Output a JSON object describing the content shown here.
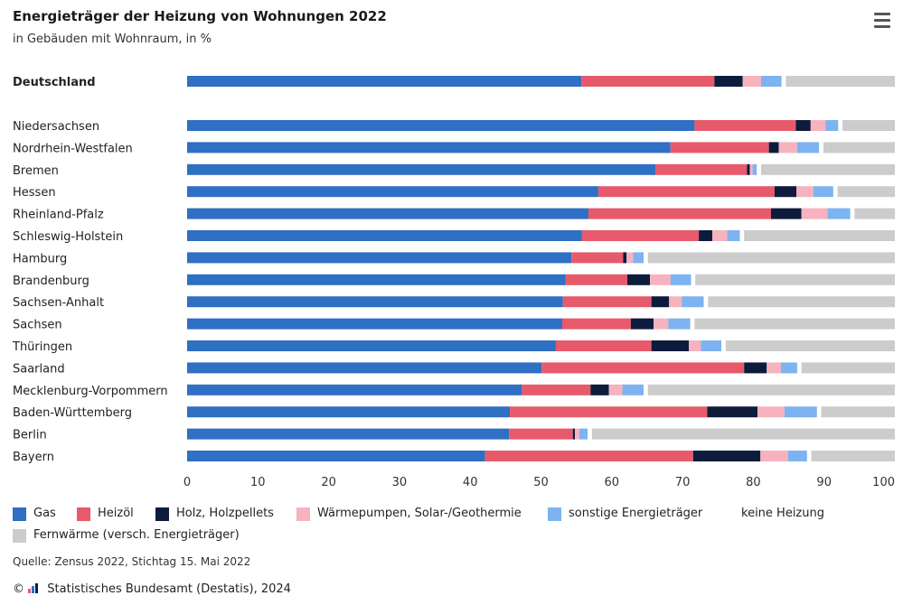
{
  "header": {
    "title": "Energieträger der Heizung von Wohnungen 2022",
    "subtitle": "in Gebäuden mit Wohnraum, in %",
    "menu_icon": "hamburger-menu-icon"
  },
  "footer": {
    "source": "Quelle: Zensus 2022, Stichtag 15. Mai 2022",
    "copyright_symbol": "©",
    "publisher": "Statistisches Bundesamt (Destatis), 2024"
  },
  "chart_data": {
    "type": "bar",
    "orientation": "horizontal",
    "stacked": true,
    "title": "Energieträger der Heizung von Wohnungen 2022",
    "subtitle": "in Gebäuden mit Wohnraum, in %",
    "xlim": [
      0,
      100
    ],
    "xticks": [
      0,
      10,
      20,
      30,
      40,
      50,
      60,
      70,
      80,
      90,
      100
    ],
    "grid": false,
    "legend_position": "bottom",
    "categories": [
      "Deutschland",
      "Niedersachsen",
      "Nordrhein-Westfalen",
      "Bremen",
      "Hessen",
      "Rheinland-Pfalz",
      "Schleswig-Holstein",
      "Hamburg",
      "Brandenburg",
      "Sachsen-Anhalt",
      "Sachsen",
      "Thüringen",
      "Saarland",
      "Mecklenburg-Vorpommern",
      "Baden-Württemberg",
      "Berlin",
      "Bayern"
    ],
    "highlight_category": "Deutschland",
    "series": [
      {
        "name": "Gas",
        "color": "#2f6fc4",
        "values": [
          55.7,
          71.7,
          68.3,
          66.2,
          58.1,
          56.7,
          55.8,
          54.3,
          53.5,
          53.1,
          53.0,
          52.1,
          50.1,
          47.3,
          45.6,
          45.5,
          42.1
        ]
      },
      {
        "name": "Heizöl",
        "color": "#e75a6b",
        "values": [
          18.8,
          14.3,
          13.9,
          12.9,
          24.9,
          25.8,
          16.5,
          7.3,
          8.7,
          12.5,
          9.7,
          13.5,
          28.6,
          9.7,
          27.9,
          9.0,
          29.4
        ]
      },
      {
        "name": "Holz, Holzpellets",
        "color": "#0d1c3d",
        "values": [
          4.0,
          2.1,
          1.4,
          0.4,
          3.1,
          4.3,
          1.9,
          0.5,
          3.2,
          2.5,
          3.2,
          5.3,
          3.2,
          2.6,
          7.1,
          0.3,
          9.5
        ]
      },
      {
        "name": "Wärmepumpen, Solar-/Geothermie",
        "color": "#f6b3bd",
        "values": [
          2.6,
          2.1,
          2.6,
          0.4,
          2.4,
          3.7,
          2.1,
          0.9,
          2.9,
          1.8,
          2.1,
          1.7,
          2.0,
          1.9,
          3.8,
          0.6,
          3.9
        ]
      },
      {
        "name": "sonstige Energieträger",
        "color": "#7db3f0",
        "values": [
          2.9,
          1.8,
          3.1,
          0.6,
          2.8,
          3.2,
          1.8,
          1.5,
          2.9,
          3.1,
          3.1,
          2.9,
          2.3,
          3.0,
          4.6,
          1.2,
          2.7
        ]
      },
      {
        "name": "keine Heizung",
        "color": "#ffffff",
        "values": [
          0.6,
          0.6,
          0.6,
          0.6,
          0.6,
          0.6,
          0.6,
          0.6,
          0.6,
          0.6,
          0.6,
          0.6,
          0.6,
          0.6,
          0.6,
          0.6,
          0.6
        ]
      },
      {
        "name": "Fernwärme (versch. Energieträger)",
        "color": "#cccccc",
        "values": [
          15.4,
          7.4,
          10.1,
          18.9,
          8.1,
          5.7,
          21.3,
          34.9,
          28.2,
          26.4,
          28.3,
          23.9,
          13.2,
          34.9,
          10.4,
          42.8,
          11.8
        ]
      }
    ]
  }
}
